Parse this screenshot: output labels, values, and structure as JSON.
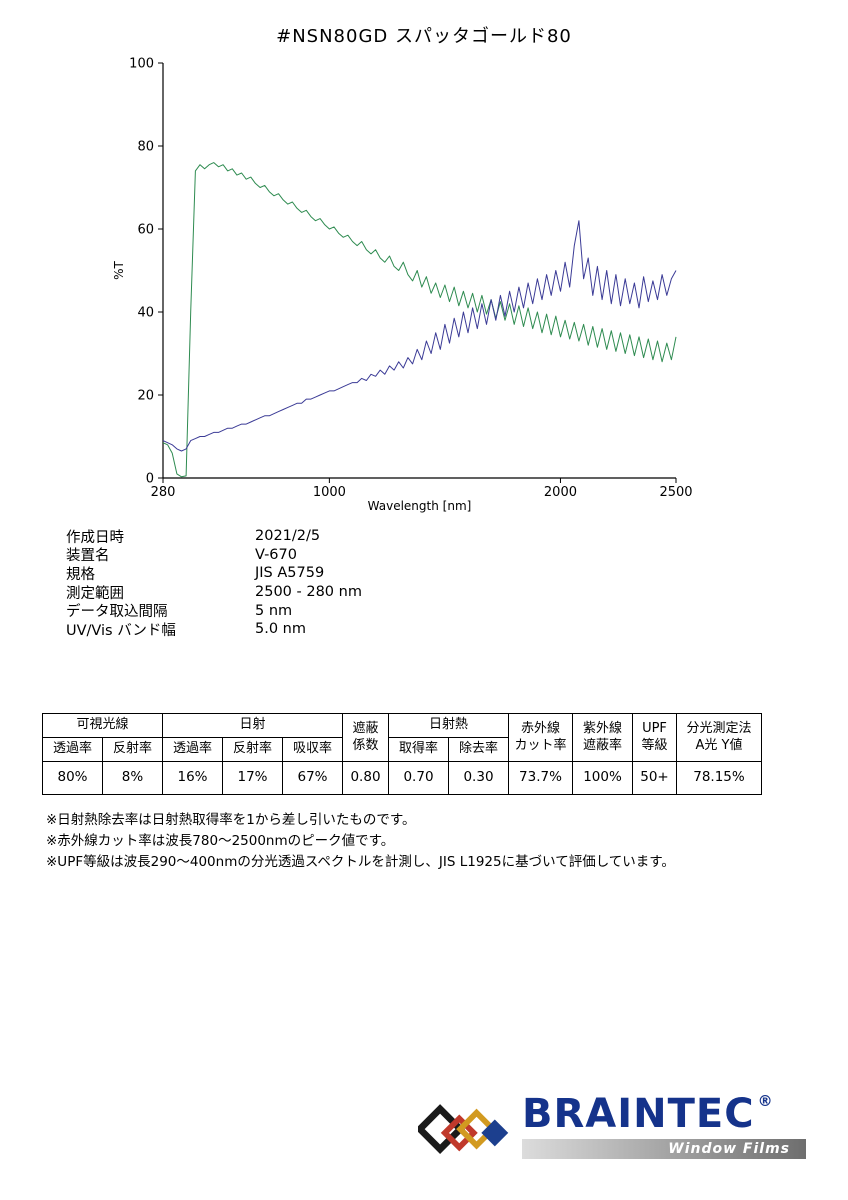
{
  "title": "#NSN80GD スパッタゴールド80",
  "colors": {
    "brand_blue": "#15338b",
    "diamond_black": "#1a1a1a",
    "diamond_red": "#c0392b",
    "diamond_gold": "#d29a20",
    "diamond_blue": "#1c3f8e"
  },
  "chart_data": {
    "type": "line",
    "title": "",
    "xlabel": "Wavelength [nm]",
    "ylabel": "%T",
    "xlim": [
      280,
      2500
    ],
    "ylim": [
      0,
      100
    ],
    "xticks": [
      280,
      1000,
      2000,
      2500
    ],
    "yticks": [
      0,
      20,
      40,
      60,
      80,
      100
    ],
    "grid": false,
    "legend": "none",
    "series": [
      {
        "name": "transmittance-green",
        "color": "#2e8b50",
        "x_start": 280,
        "x_step": 20,
        "y": [
          8.5,
          8,
          6,
          1,
          0.3,
          0.5,
          40,
          74,
          75.5,
          74.5,
          75.5,
          76,
          75,
          75.5,
          74,
          74.5,
          73,
          73.5,
          72,
          72.5,
          71,
          70,
          70.5,
          69,
          68,
          68.5,
          67,
          66,
          66.5,
          65,
          64,
          64.5,
          63,
          62,
          62.5,
          61,
          60,
          60.5,
          59,
          58,
          58.5,
          57,
          56,
          57,
          55,
          54,
          55,
          53,
          52,
          53.5,
          51,
          50,
          52,
          49,
          47.5,
          50,
          46,
          48.5,
          44.5,
          47,
          43.5,
          46.5,
          42.5,
          46,
          41.5,
          45,
          41,
          44.5,
          40,
          44,
          39.5,
          43,
          38.5,
          42.5,
          38,
          42,
          37,
          41.5,
          36.5,
          41,
          36,
          40,
          35,
          39.5,
          34.5,
          39,
          34,
          38,
          33.5,
          37.5,
          33,
          37,
          32,
          36.5,
          31.5,
          36,
          31,
          35.5,
          30.5,
          35,
          30,
          34.5,
          29.5,
          34,
          29,
          33.5,
          28.5,
          33,
          28,
          32.5,
          28.5,
          34
        ]
      },
      {
        "name": "reflectance-blue",
        "color": "#3b3b96",
        "x_start": 280,
        "x_step": 20,
        "y": [
          9,
          8.5,
          8,
          7,
          6.5,
          7,
          9,
          9.5,
          10,
          10,
          10.5,
          11,
          11,
          11.5,
          12,
          12,
          12.5,
          13,
          13,
          13.5,
          14,
          14.5,
          15,
          15,
          15.5,
          16,
          16.5,
          17,
          17.5,
          18,
          18,
          19,
          19,
          19.5,
          20,
          20.5,
          21,
          21,
          21.5,
          22,
          22.5,
          23,
          23,
          24,
          23.5,
          25,
          24.5,
          26,
          25,
          27,
          26,
          28,
          26.5,
          29,
          27.5,
          31,
          28.5,
          33,
          30,
          35,
          31,
          37,
          32.5,
          38.5,
          34,
          40,
          35,
          41,
          36,
          42,
          37,
          43,
          38,
          44,
          39,
          45,
          40,
          46,
          41,
          47,
          42,
          48,
          43,
          49,
          44,
          50,
          45,
          52,
          46,
          56,
          62,
          48,
          53,
          44,
          51,
          43,
          50,
          42,
          49,
          41.5,
          48,
          42,
          47,
          41,
          48.5,
          42.5,
          47.5,
          43,
          49,
          44,
          48,
          50
        ]
      }
    ]
  },
  "info": {
    "rows": [
      {
        "label": "作成日時",
        "value": "2021/2/5"
      },
      {
        "label": "装置名",
        "value": "V-670"
      },
      {
        "label": "規格",
        "value": "JIS A5759"
      },
      {
        "label": "測定範囲",
        "value": "2500 - 280 nm"
      },
      {
        "label": "データ取込間隔",
        "value": "5 nm"
      },
      {
        "label": "UV/Vis バンド幅",
        "value": "5.0 nm"
      }
    ]
  },
  "spec_table": {
    "group_visible": "可視光線",
    "group_solar": "日射",
    "shading_coeff": "遮蔽\n係数",
    "group_solar_heat": "日射熱",
    "ir_cut": "赤外線\nカット率",
    "uv_block": "紫外線\n遮蔽率",
    "upf": "UPF\n等級",
    "photometric": "分光測定法\nA光 Y値",
    "sub_headers": [
      "透過率",
      "反射率",
      "透過率",
      "反射率",
      "吸収率",
      "取得率",
      "除去率"
    ],
    "values": [
      "80%",
      "8%",
      "16%",
      "17%",
      "67%",
      "0.80",
      "0.70",
      "0.30",
      "73.7%",
      "100%",
      "50+",
      "78.15%"
    ]
  },
  "notes": [
    "※日射熱除去率は日射熱取得率を1から差し引いたものです。",
    "※赤外線カット率は波長780〜2500nmのピーク値です。",
    "※UPF等級は波長290〜400nmの分光透過スペクトルを計測し、JIS L1925に基づいて評価しています。"
  ],
  "logo": {
    "brand": "BRAINTEC",
    "registered": "®",
    "tagline": "Window Films"
  }
}
